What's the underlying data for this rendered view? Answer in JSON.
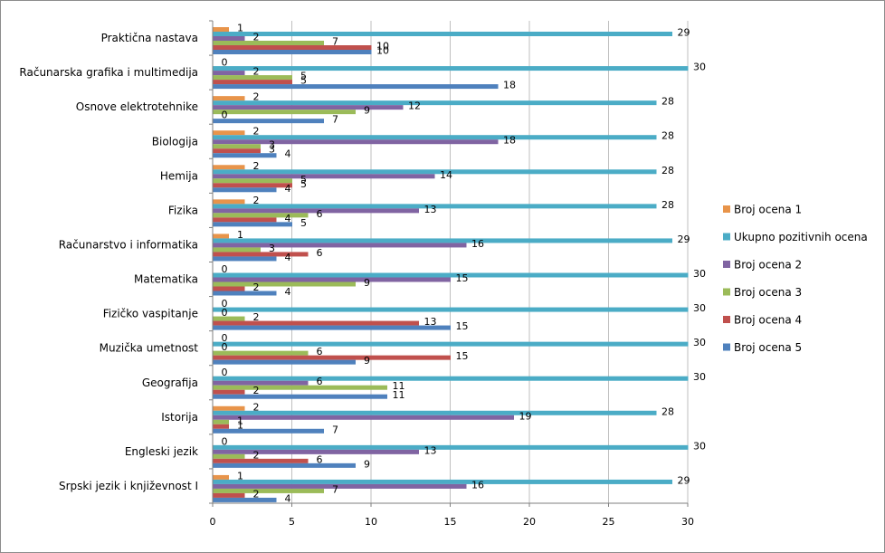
{
  "chart_data": {
    "type": "bar",
    "orientation": "horizontal",
    "title": "",
    "xlabel": "",
    "ylabel": "",
    "xlim": [
      0,
      30
    ],
    "xticks": [
      "0",
      "5",
      "10",
      "15",
      "20",
      "25",
      "30"
    ],
    "grid": true,
    "legend_position": "right",
    "categories": [
      "Praktična nastava",
      "Računarska grafika i multimedija",
      "Osnove elektrotehnike",
      "Biologija",
      "Hemija",
      "Fizika",
      "Računarstvo i informatika",
      "Matematika",
      "Fizičko vaspitanje",
      "Muzička umetnost",
      "Geografija",
      "Istorija",
      "Engleski jezik",
      "Srpski jezik i književnost I"
    ],
    "series": [
      {
        "name": "Broj ocena 1",
        "color": "#e8944a",
        "values": [
          1,
          0,
          2,
          2,
          2,
          2,
          1,
          0,
          0,
          0,
          0,
          2,
          0,
          1
        ]
      },
      {
        "name": "Ukupno pozitivnih ocena",
        "color": "#4bacc6",
        "values": [
          29,
          30,
          28,
          28,
          28,
          28,
          29,
          30,
          30,
          30,
          30,
          28,
          30,
          29
        ]
      },
      {
        "name": "Broj ocena 2",
        "color": "#8064a2",
        "values": [
          2,
          2,
          12,
          18,
          14,
          13,
          16,
          15,
          0,
          0,
          6,
          19,
          13,
          16
        ]
      },
      {
        "name": "Broj ocena 3",
        "color": "#9bbb59",
        "values": [
          7,
          5,
          9,
          3,
          5,
          6,
          3,
          9,
          2,
          6,
          11,
          1,
          2,
          7
        ]
      },
      {
        "name": "Broj ocena 4",
        "color": "#c0504d",
        "values": [
          10,
          5,
          0,
          3,
          5,
          4,
          6,
          2,
          13,
          15,
          2,
          1,
          6,
          2
        ]
      },
      {
        "name": "Broj ocena 5",
        "color": "#4f81bd",
        "values": [
          10,
          18,
          7,
          4,
          4,
          5,
          4,
          4,
          15,
          9,
          11,
          7,
          9,
          4
        ]
      }
    ]
  }
}
